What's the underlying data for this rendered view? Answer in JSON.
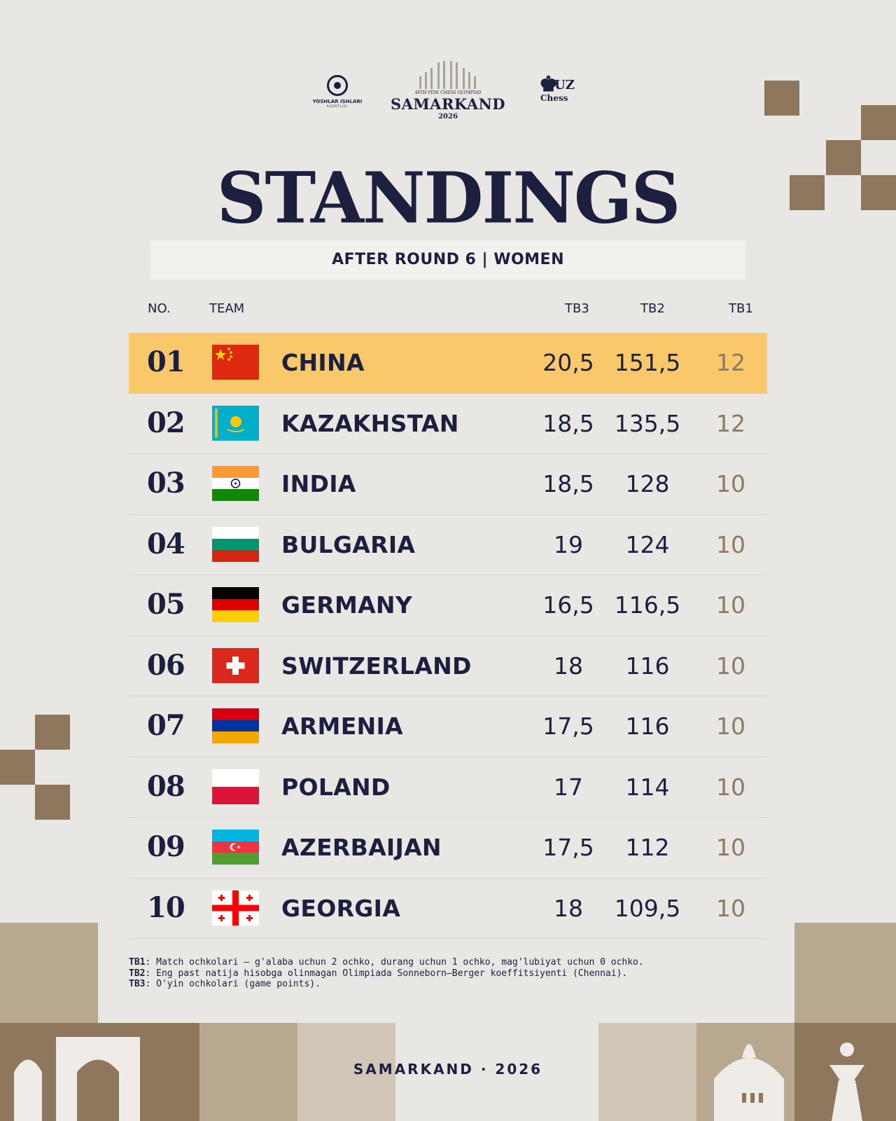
{
  "logos": {
    "left": {
      "line1": "YOSHLAR ISHLARI",
      "line2": "AGENTLIGI"
    },
    "center": {
      "subtitle": "46TH FIDE CHESS OLYMPIAD",
      "name": "SAMARKAND",
      "year": "2026"
    },
    "right": {
      "top": "UZ",
      "bottom": "Chess"
    }
  },
  "title": "STANDINGS",
  "subtitle": "AFTER ROUND 6 | WOMEN",
  "columns": {
    "no": "NO.",
    "team": "TEAM",
    "tb3": "TB3",
    "tb2": "TB2",
    "tb1": "TB1"
  },
  "colors": {
    "highlight": "#f8c86a",
    "navy": "#1d1f3f",
    "tb1": "#8d7a63",
    "deco": "#8e775d"
  },
  "rows": [
    {
      "no": "01",
      "team": "CHINA",
      "flag": "china-flag",
      "tb3": "20,5",
      "tb2": "151,5",
      "tb1": "12"
    },
    {
      "no": "02",
      "team": "KAZAKHSTAN",
      "flag": "kazakhstan-flag",
      "tb3": "18,5",
      "tb2": "135,5",
      "tb1": "12"
    },
    {
      "no": "03",
      "team": "INDIA",
      "flag": "india-flag",
      "tb3": "18,5",
      "tb2": "128",
      "tb1": "10"
    },
    {
      "no": "04",
      "team": "BULGARIA",
      "flag": "bulgaria-flag",
      "tb3": "19",
      "tb2": "124",
      "tb1": "10"
    },
    {
      "no": "05",
      "team": "GERMANY",
      "flag": "germany-flag",
      "tb3": "16,5",
      "tb2": "116,5",
      "tb1": "10"
    },
    {
      "no": "06",
      "team": "SWITZERLAND",
      "flag": "switzerland-flag",
      "tb3": "18",
      "tb2": "116",
      "tb1": "10"
    },
    {
      "no": "07",
      "team": "ARMENIA",
      "flag": "armenia-flag",
      "tb3": "17,5",
      "tb2": "116",
      "tb1": "10"
    },
    {
      "no": "08",
      "team": "POLAND",
      "flag": "poland-flag",
      "tb3": "17",
      "tb2": "114",
      "tb1": "10"
    },
    {
      "no": "09",
      "team": "AZERBAIJAN",
      "flag": "azerbaijan-flag",
      "tb3": "17,5",
      "tb2": "112",
      "tb1": "10"
    },
    {
      "no": "10",
      "team": "GEORGIA",
      "flag": "georgia-flag",
      "tb3": "18",
      "tb2": "109,5",
      "tb1": "10"
    }
  ],
  "notes": [
    {
      "key": "TB1",
      "text": ": Match ochkolari — g'alaba uchun 2 ochko, durang uchun 1 ochko, mag'lubiyat uchun 0 ochko."
    },
    {
      "key": "TB2",
      "text": ": Eng past natija hisobga olinmagan Olimpiada Sonneborn–Berger koeffitsiyenti (Chennai)."
    },
    {
      "key": "TB3",
      "text": ": O'yin ochkolari (game points)."
    }
  ],
  "footer": "SAMARKAND · 2026"
}
